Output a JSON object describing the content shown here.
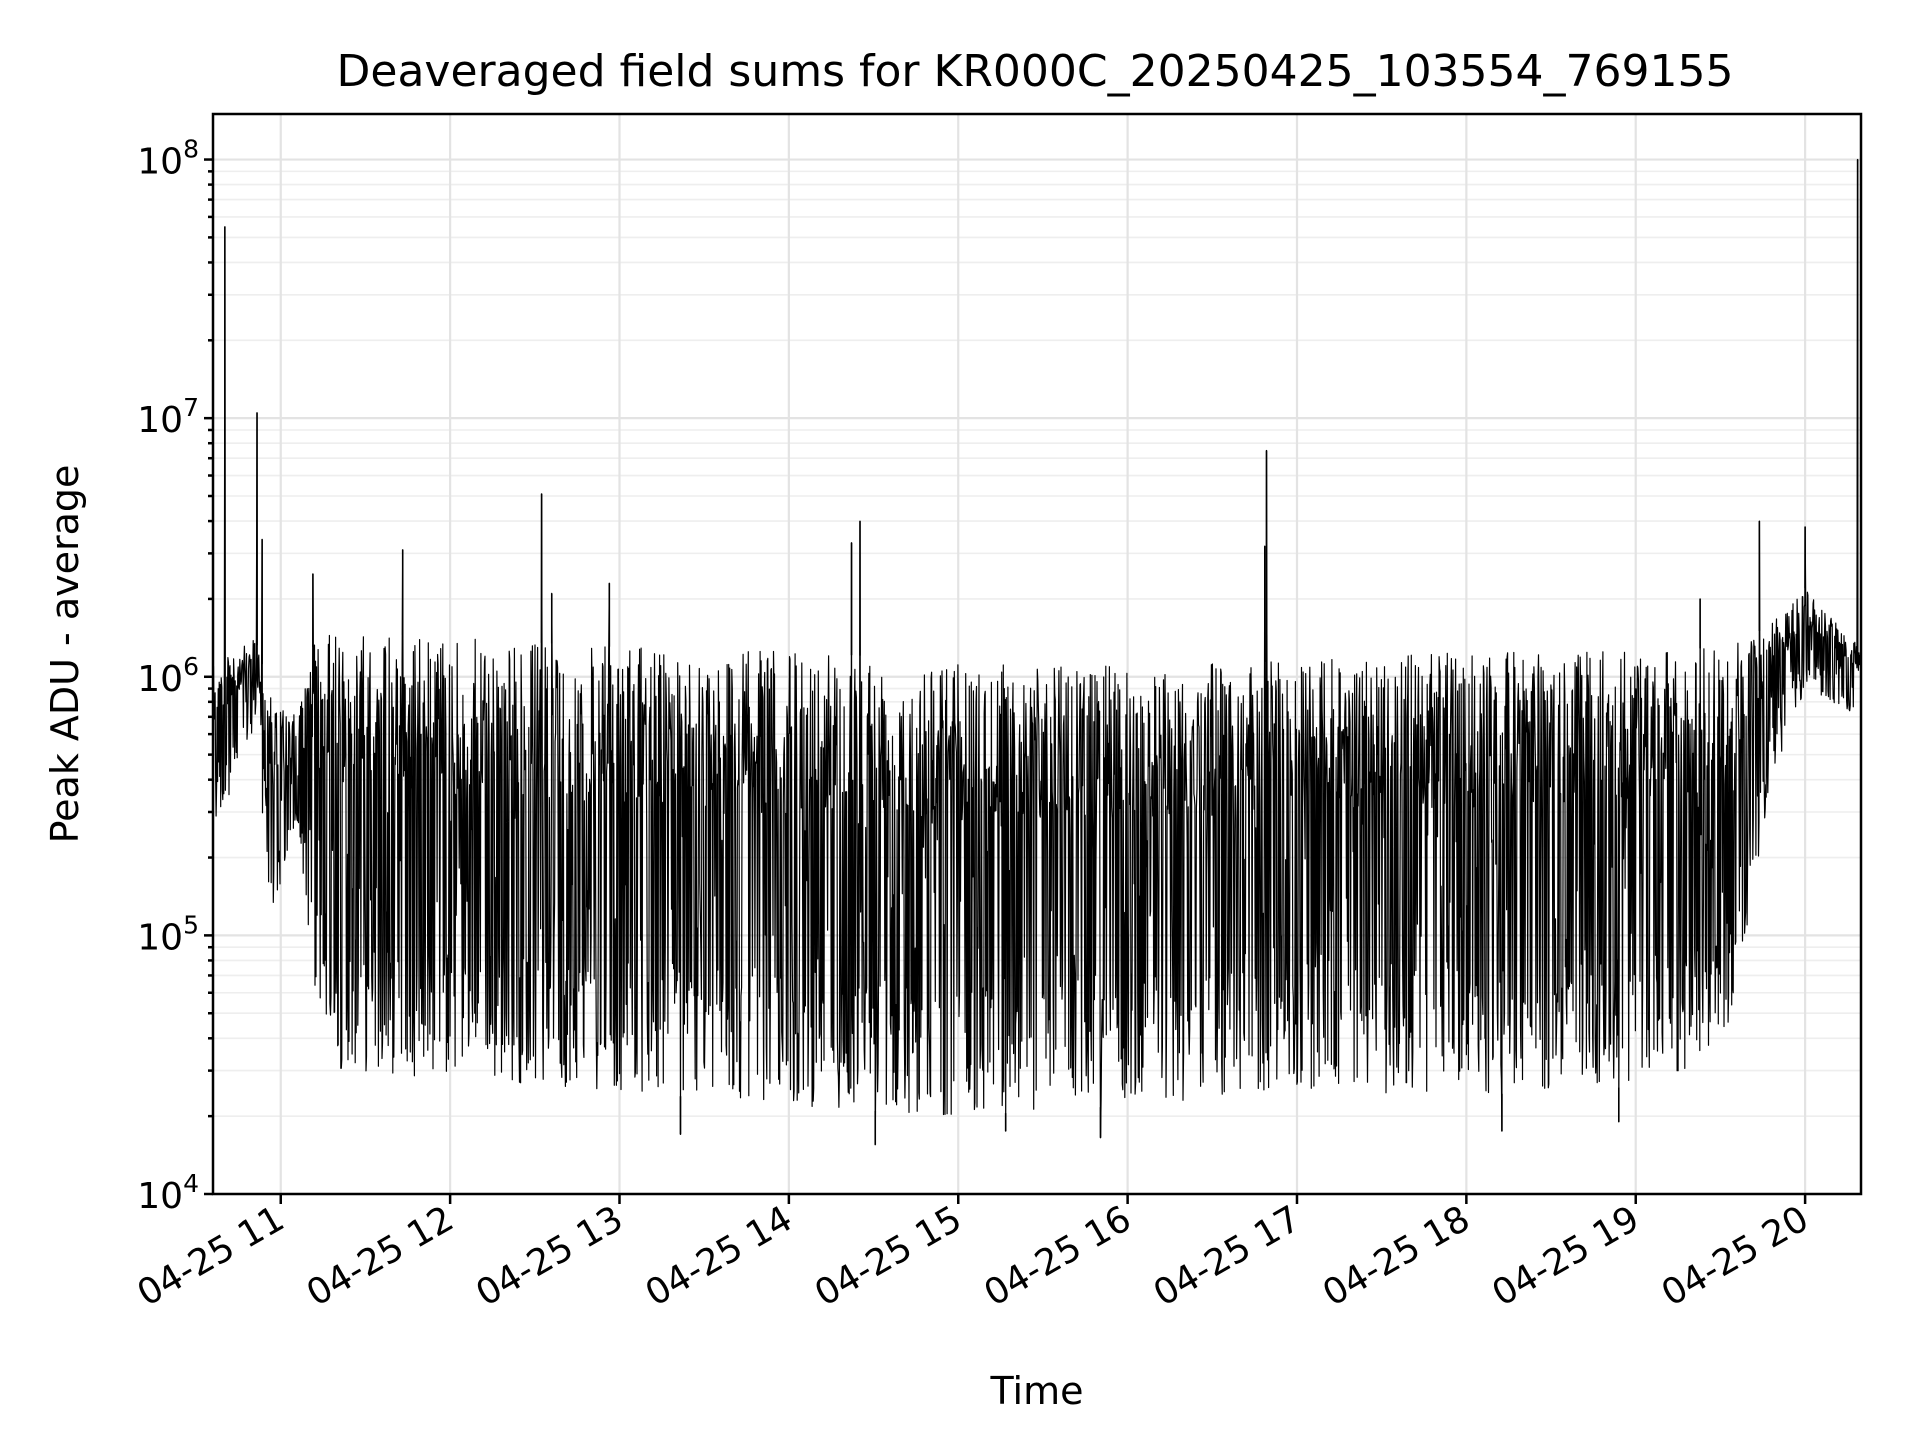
{
  "chart_data": {
    "type": "line",
    "title": "Deaveraged field sums for KR000C_20250425_103554_769155",
    "xlabel": "Time",
    "ylabel": "Peak ADU - average",
    "yscale": "log",
    "grid": true,
    "ylim": [
      10000,
      150000000
    ],
    "xlim_hours": [
      10.6,
      20.33
    ],
    "x_ticks": [
      {
        "hour": 11,
        "label": "04-25 11"
      },
      {
        "hour": 12,
        "label": "04-25 12"
      },
      {
        "hour": 13,
        "label": "04-25 13"
      },
      {
        "hour": 14,
        "label": "04-25 14"
      },
      {
        "hour": 15,
        "label": "04-25 15"
      },
      {
        "hour": 16,
        "label": "04-25 16"
      },
      {
        "hour": 17,
        "label": "04-25 17"
      },
      {
        "hour": 18,
        "label": "04-25 18"
      },
      {
        "hour": 19,
        "label": "04-25 19"
      },
      {
        "hour": 20,
        "label": "04-25 20"
      }
    ],
    "y_ticks": [
      {
        "value": 10000,
        "base": "10",
        "exp": "4"
      },
      {
        "value": 100000,
        "base": "10",
        "exp": "5"
      },
      {
        "value": 1000000,
        "base": "10",
        "exp": "6"
      },
      {
        "value": 10000000,
        "base": "10",
        "exp": "7"
      },
      {
        "value": 100000000,
        "base": "10",
        "exp": "8"
      }
    ],
    "series": [
      {
        "name": "Peak ADU - average",
        "color": "#000000",
        "envelope": [
          {
            "hour": 10.6,
            "lo": 250000,
            "hi": 1100000
          },
          {
            "hour": 10.85,
            "lo": 600000,
            "hi": 1400000
          },
          {
            "hour": 10.95,
            "lo": 110000,
            "hi": 800000
          },
          {
            "hour": 11.1,
            "lo": 250000,
            "hi": 700000
          },
          {
            "hour": 11.2,
            "lo": 60000,
            "hi": 1400000
          },
          {
            "hour": 11.35,
            "lo": 30000,
            "hi": 1500000
          },
          {
            "hour": 13.0,
            "lo": 25000,
            "hi": 1300000
          },
          {
            "hour": 14.0,
            "lo": 22000,
            "hi": 1250000
          },
          {
            "hour": 15.0,
            "lo": 20000,
            "hi": 1150000
          },
          {
            "hour": 16.0,
            "lo": 22000,
            "hi": 1100000
          },
          {
            "hour": 17.0,
            "lo": 25000,
            "hi": 1150000
          },
          {
            "hour": 18.0,
            "lo": 24000,
            "hi": 1250000
          },
          {
            "hour": 19.0,
            "lo": 26000,
            "hi": 1250000
          },
          {
            "hour": 19.5,
            "lo": 30000,
            "hi": 1300000
          },
          {
            "hour": 19.65,
            "lo": 100000,
            "hi": 1400000
          },
          {
            "hour": 19.8,
            "lo": 400000,
            "hi": 1600000
          },
          {
            "hour": 20.0,
            "lo": 900000,
            "hi": 2200000
          },
          {
            "hour": 20.33,
            "lo": 700000,
            "hi": 1300000
          }
        ],
        "spikes": [
          {
            "hour": 10.67,
            "value": 55000000
          },
          {
            "hour": 10.86,
            "value": 10500000
          },
          {
            "hour": 10.89,
            "value": 3400000
          },
          {
            "hour": 11.19,
            "value": 2500000
          },
          {
            "hour": 11.72,
            "value": 3100000
          },
          {
            "hour": 12.54,
            "value": 5100000
          },
          {
            "hour": 12.6,
            "value": 2100000
          },
          {
            "hour": 12.94,
            "value": 2300000
          },
          {
            "hour": 13.36,
            "value": 17000
          },
          {
            "hour": 14.37,
            "value": 3300000
          },
          {
            "hour": 14.42,
            "value": 4000000
          },
          {
            "hour": 14.51,
            "value": 15500
          },
          {
            "hour": 15.28,
            "value": 17500
          },
          {
            "hour": 15.84,
            "value": 16500
          },
          {
            "hour": 16.82,
            "value": 7500000
          },
          {
            "hour": 16.81,
            "value": 3200000
          },
          {
            "hour": 18.21,
            "value": 17500
          },
          {
            "hour": 18.9,
            "value": 19000
          },
          {
            "hour": 19.38,
            "value": 2000000
          },
          {
            "hour": 19.73,
            "value": 4000000
          },
          {
            "hour": 20.0,
            "value": 3800000
          },
          {
            "hour": 20.31,
            "value": 100000000
          }
        ]
      }
    ]
  }
}
